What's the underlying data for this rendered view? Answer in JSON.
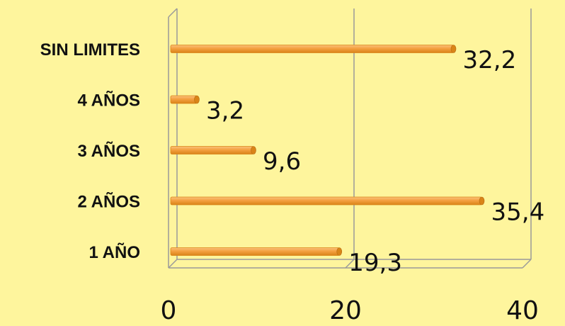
{
  "chart_data": {
    "type": "bar",
    "orientation": "horizontal",
    "categories": [
      "1 AÑO",
      "2 AÑOS",
      "3 AÑOS",
      "4 AÑOS",
      "SIN LIMITES"
    ],
    "values": [
      19.3,
      35.4,
      9.6,
      3.2,
      32.2
    ],
    "value_labels": [
      "19,3",
      "35,4",
      "9,6",
      "3,2",
      "32,2"
    ],
    "xlim": [
      0,
      40
    ],
    "x_ticks": [
      0,
      20,
      40
    ],
    "x_tick_labels": [
      "0",
      "20",
      "40"
    ],
    "grid": true,
    "legend": false,
    "title": "",
    "xlabel": "",
    "ylabel": ""
  },
  "colors": {
    "background": "#FEF59D",
    "bar": "#F4A040",
    "bar_dark": "#D98418",
    "bar_light": "#FAC27A",
    "frame": "#9A9A9A"
  }
}
